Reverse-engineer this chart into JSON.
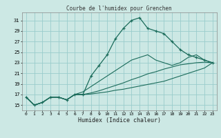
{
  "title": "Courbe de l'humidex pour Grenchen",
  "xlabel": "Humidex (Indice chaleur)",
  "bg_color": "#cce8e4",
  "grid_color": "#99cccc",
  "line_color": "#1a6b5a",
  "xlim": [
    -0.5,
    23.5
  ],
  "ylim": [
    14.0,
    32.5
  ],
  "yticks": [
    15,
    17,
    19,
    21,
    23,
    25,
    27,
    29,
    31
  ],
  "xticks": [
    0,
    1,
    2,
    3,
    4,
    5,
    6,
    7,
    8,
    9,
    10,
    11,
    12,
    13,
    14,
    15,
    16,
    17,
    18,
    19,
    20,
    21,
    22,
    23
  ],
  "line_main": [
    16.5,
    15.0,
    15.5,
    16.5,
    16.5,
    16.0,
    17.0,
    17.0,
    20.5,
    22.5,
    24.5,
    27.5,
    29.5,
    31.0,
    31.5,
    29.5,
    29.0,
    28.5,
    27.0,
    25.5,
    24.5,
    24.0,
    23.5,
    23.0
  ],
  "line_upper": [
    16.5,
    15.0,
    15.5,
    16.5,
    16.5,
    16.0,
    17.0,
    17.5,
    18.5,
    19.5,
    20.5,
    21.5,
    22.5,
    23.5,
    24.0,
    24.5,
    23.5,
    23.0,
    22.5,
    23.0,
    24.0,
    24.5,
    23.5,
    23.0
  ],
  "line_mid": [
    16.5,
    15.0,
    15.5,
    16.5,
    16.5,
    16.0,
    17.0,
    17.0,
    17.3,
    17.7,
    18.2,
    18.7,
    19.2,
    19.8,
    20.3,
    20.9,
    21.3,
    21.8,
    22.2,
    22.6,
    22.8,
    23.0,
    23.1,
    23.0
  ],
  "line_lower": [
    16.5,
    15.0,
    15.5,
    16.5,
    16.5,
    16.0,
    17.0,
    17.0,
    17.1,
    17.3,
    17.5,
    17.8,
    18.0,
    18.3,
    18.6,
    18.9,
    19.2,
    19.5,
    20.0,
    20.5,
    21.0,
    21.5,
    22.0,
    23.0
  ]
}
